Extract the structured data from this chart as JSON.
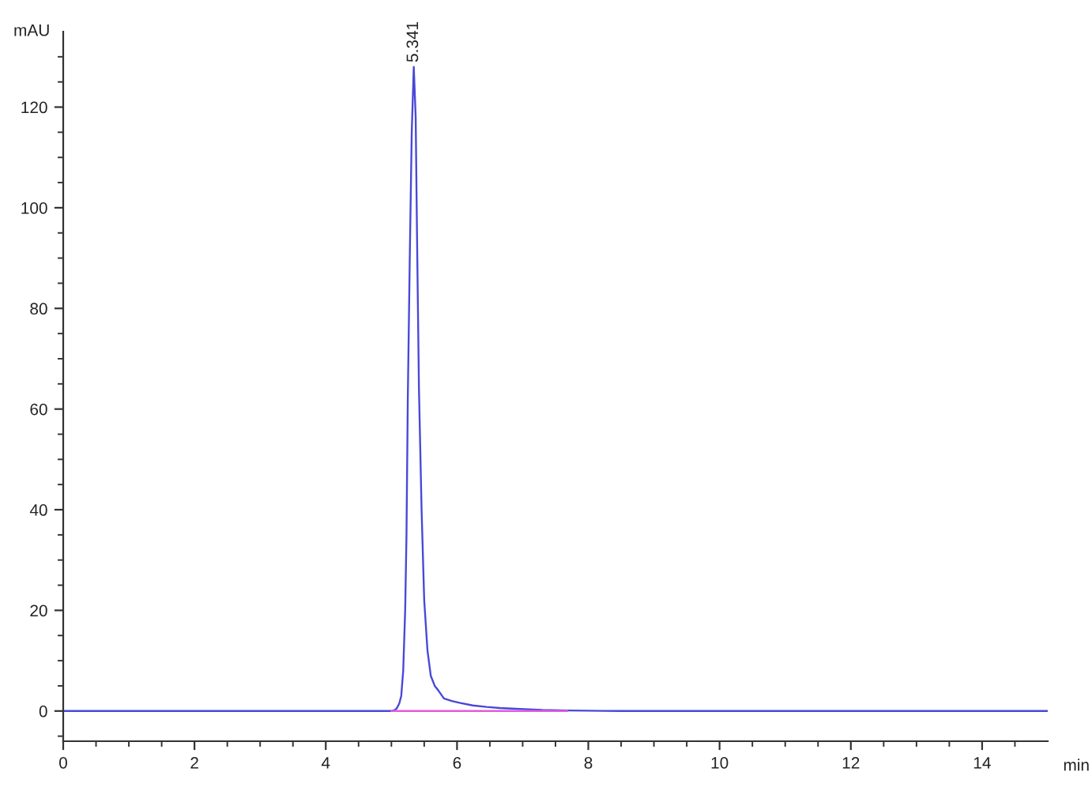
{
  "chart_data": {
    "type": "line",
    "xlabel": "min",
    "ylabel": "mAU",
    "series": [
      {
        "color": "#4848d8",
        "x": [
          0,
          4.9,
          5.0,
          5.05,
          5.08,
          5.12,
          5.15,
          5.18,
          5.21,
          5.23,
          5.25,
          5.28,
          5.31,
          5.341,
          5.37,
          5.39,
          5.42,
          5.46,
          5.5,
          5.55,
          5.6,
          5.66,
          5.72,
          5.8,
          5.92,
          6.05,
          6.24,
          6.45,
          6.65,
          6.96,
          7.3,
          7.7,
          8.5,
          10,
          12,
          14,
          15
        ],
        "values": [
          0,
          0,
          0,
          0.2,
          0.5,
          1.5,
          3,
          8,
          20,
          35,
          62,
          90,
          115,
          128,
          118,
          95,
          64,
          40,
          22,
          12,
          7,
          5,
          4,
          2.5,
          2,
          1.6,
          1.1,
          0.8,
          0.6,
          0.4,
          0.2,
          0.1,
          0,
          0,
          0,
          0,
          0
        ]
      },
      {
        "color": "#e05ce0",
        "x": [
          5.0,
          7.68
        ],
        "values": [
          0,
          0
        ]
      }
    ],
    "annotations": [
      {
        "text": "5.341",
        "x": 5.341,
        "y": 128
      }
    ],
    "xlim": [
      0,
      15
    ],
    "xticks": [
      0,
      {
        "value": 0.5,
        "label": null
      },
      {
        "value": 1,
        "label": null
      },
      {
        "value": 1.5,
        "label": null
      },
      2,
      {
        "value": 2.5,
        "label": null
      },
      {
        "value": 3,
        "label": null
      },
      {
        "value": 3.5,
        "label": null
      },
      4,
      {
        "value": 4.5,
        "label": null
      },
      {
        "value": 5,
        "label": null
      },
      {
        "value": 5.5,
        "label": null
      },
      6,
      {
        "value": 6.5,
        "label": null
      },
      {
        "value": 7,
        "label": null
      },
      {
        "value": 7.5,
        "label": null
      },
      8,
      {
        "value": 8.5,
        "label": null
      },
      {
        "value": 9,
        "label": null
      },
      {
        "value": 9.5,
        "label": null
      },
      10,
      {
        "value": 10.5,
        "label": null
      },
      {
        "value": 11,
        "label": null
      },
      {
        "value": 11.5,
        "label": null
      },
      12,
      {
        "value": 12.5,
        "label": null
      },
      {
        "value": 13,
        "label": null
      },
      {
        "value": 13.5,
        "label": null
      },
      14,
      {
        "value": 14.5,
        "label": null
      }
    ],
    "ylim": [
      -6,
      135
    ],
    "yticks": [
      {
        "value": -5,
        "label": null
      },
      0,
      {
        "value": 5,
        "label": null
      },
      {
        "value": 10,
        "label": null
      },
      {
        "value": 15,
        "label": null
      },
      20,
      {
        "value": 25,
        "label": null
      },
      {
        "value": 30,
        "label": null
      },
      {
        "value": 35,
        "label": null
      },
      40,
      {
        "value": 45,
        "label": null
      },
      {
        "value": 50,
        "label": null
      },
      {
        "value": 55,
        "label": null
      },
      60,
      {
        "value": 65,
        "label": null
      },
      {
        "value": 70,
        "label": null
      },
      {
        "value": 75,
        "label": null
      },
      80,
      {
        "value": 85,
        "label": null
      },
      {
        "value": 90,
        "label": null
      },
      {
        "value": 95,
        "label": null
      },
      100,
      {
        "value": 105,
        "label": null
      },
      {
        "value": 110,
        "label": null
      },
      {
        "value": 115,
        "label": null
      },
      120,
      {
        "value": 125,
        "label": null
      },
      {
        "value": 130,
        "label": null
      }
    ]
  }
}
